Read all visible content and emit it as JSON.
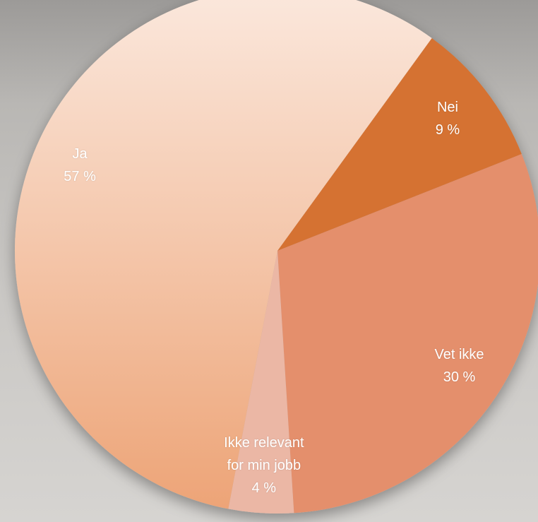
{
  "chart_data": {
    "type": "pie",
    "categories": [
      "Nei",
      "Vet ikke",
      "Ikke relevant for min jobb",
      "Ja"
    ],
    "values": [
      9,
      30,
      4,
      57
    ],
    "value_labels": [
      "9 %",
      "30 %",
      "4 %",
      "57 %"
    ],
    "colors": [
      "#d57232",
      "#e48f6c",
      "#ebb7a5",
      "#eda477"
    ],
    "start_angle": 36
  }
}
